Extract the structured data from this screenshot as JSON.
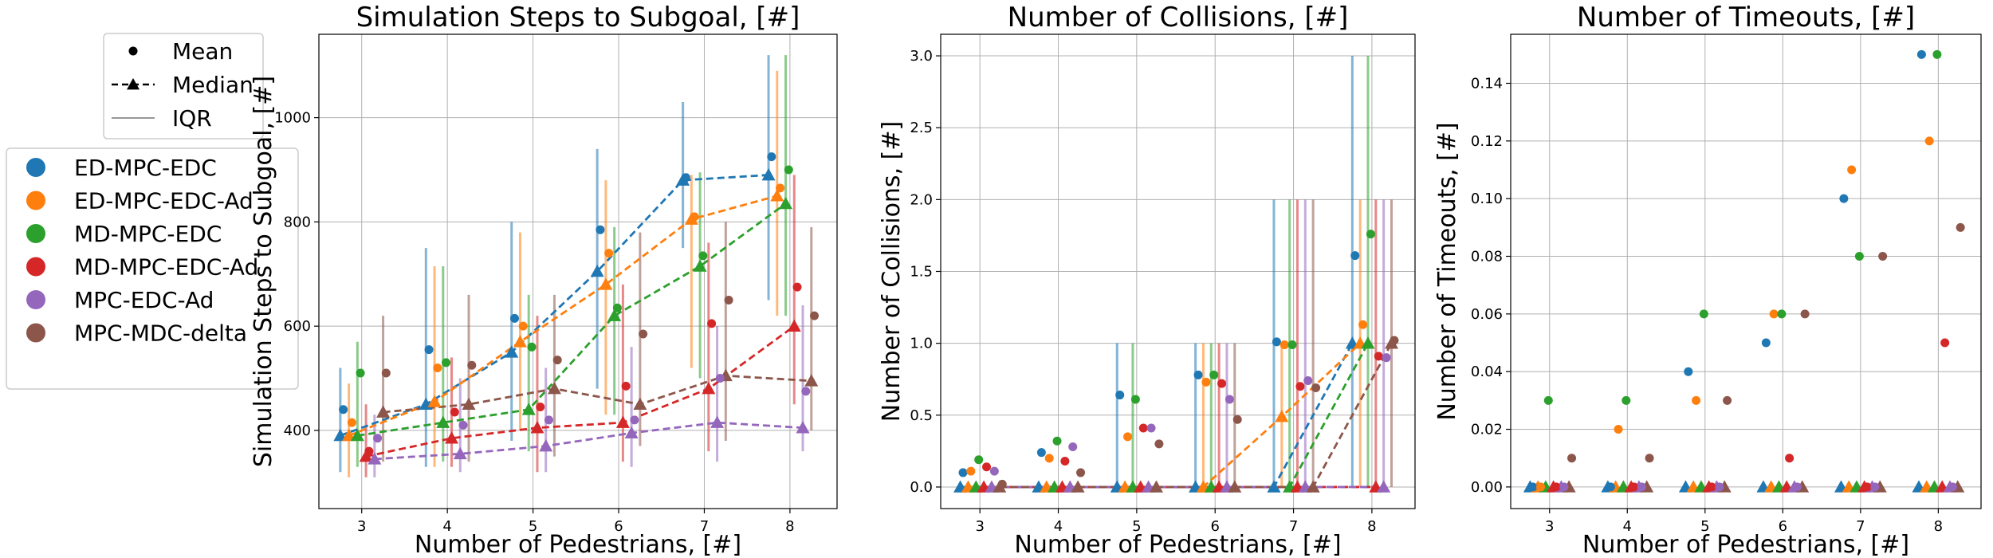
{
  "legend_markers": [
    {
      "label": "Mean",
      "marker": "dot",
      "line": "none"
    },
    {
      "label": "Median",
      "marker": "triangle",
      "line": "dashed"
    },
    {
      "label": "IQR",
      "marker": "none",
      "line": "solid-gray"
    }
  ],
  "legend_methods": [
    {
      "label": "ED-MPC-EDC",
      "color": "#1f77b4"
    },
    {
      "label": "ED-MPC-EDC-Ad",
      "color": "#ff7f0e"
    },
    {
      "label": "MD-MPC-EDC",
      "color": "#2ca02c"
    },
    {
      "label": "MD-MPC-EDC-Ad",
      "color": "#d62728"
    },
    {
      "label": "MPC-EDC-Ad",
      "color": "#9467bd"
    },
    {
      "label": "MPC-MDC-delta",
      "color": "#8c564b"
    }
  ],
  "chart_data": [
    {
      "type": "scatter",
      "title": "Simulation Steps to Subgoal, [#]",
      "xlabel": "Number of Pedestrians, [#]",
      "ylabel": "Simulation Steps to Subgoal, [#]",
      "xlim": [
        2.5,
        8.55
      ],
      "ylim": [
        250,
        1160
      ],
      "xticks": [
        3,
        4,
        5,
        6,
        7,
        8
      ],
      "yticks": [
        400,
        600,
        800,
        1000
      ],
      "ytick_labels": [
        "400",
        "600",
        "800",
        "1000"
      ],
      "grid": true,
      "median_lines": true,
      "x": [
        3,
        4,
        5,
        6,
        7,
        8
      ],
      "series": [
        {
          "name": "ED-MPC-EDC",
          "mean": [
            440,
            555,
            615,
            785,
            885,
            925
          ],
          "median": [
            390,
            450,
            550,
            705,
            880,
            890
          ],
          "iqr": [
            [
              320,
              520
            ],
            [
              330,
              750
            ],
            [
              380,
              800
            ],
            [
              480,
              940
            ],
            [
              750,
              1030
            ],
            [
              650,
              1120
            ]
          ]
        },
        {
          "name": "ED-MPC-EDC-Ad",
          "mean": [
            415,
            520,
            600,
            740,
            810,
            865
          ],
          "median": [
            390,
            455,
            570,
            680,
            805,
            850
          ],
          "iqr": [
            [
              310,
              490
            ],
            [
              330,
              715
            ],
            [
              400,
              780
            ],
            [
              430,
              880
            ],
            [
              520,
              890
            ],
            [
              620,
              1090
            ]
          ]
        },
        {
          "name": "MD-MPC-EDC",
          "mean": [
            510,
            530,
            560,
            635,
            735,
            900
          ],
          "median": [
            390,
            415,
            440,
            620,
            715,
            835
          ],
          "iqr": [
            [
              330,
              570
            ],
            [
              340,
              715
            ],
            [
              360,
              660
            ],
            [
              430,
              790
            ],
            [
              500,
              895
            ],
            [
              620,
              1120
            ]
          ]
        },
        {
          "name": "MD-MPC-EDC-Ad",
          "mean": [
            360,
            435,
            445,
            485,
            605,
            675
          ],
          "median": [
            350,
            385,
            405,
            415,
            480,
            600
          ],
          "iqr": [
            [
              310,
              450
            ],
            [
              330,
              540
            ],
            [
              320,
              620
            ],
            [
              340,
              680
            ],
            [
              360,
              760
            ],
            [
              450,
              890
            ]
          ]
        },
        {
          "name": "MPC-EDC-Ad",
          "mean": [
            385,
            410,
            420,
            420,
            500,
            475
          ],
          "median": [
            345,
            355,
            370,
            395,
            415,
            405
          ],
          "iqr": [
            [
              310,
              430
            ],
            [
              320,
              500
            ],
            [
              320,
              520
            ],
            [
              330,
              560
            ],
            [
              340,
              600
            ],
            [
              360,
              640
            ]
          ]
        },
        {
          "name": "MPC-MDC-delta",
          "mean": [
            510,
            525,
            535,
            585,
            650,
            620
          ],
          "median": [
            435,
            450,
            480,
            450,
            505,
            495
          ],
          "iqr": [
            [
              340,
              620
            ],
            [
              340,
              660
            ],
            [
              350,
              660
            ],
            [
              370,
              780
            ],
            [
              380,
              800
            ],
            [
              400,
              790
            ]
          ]
        }
      ]
    },
    {
      "type": "scatter",
      "title": "Number of Collisions, [#]",
      "xlabel": "Number of Pedestrians, [#]",
      "ylabel": "Number of Collisions, [#]",
      "xlim": [
        2.5,
        8.55
      ],
      "ylim": [
        -0.15,
        3.15
      ],
      "xticks": [
        3,
        4,
        5,
        6,
        7,
        8
      ],
      "yticks": [
        0,
        0.5,
        1,
        1.5,
        2,
        2.5,
        3
      ],
      "ytick_labels": [
        "0.0",
        "0.5",
        "1.0",
        "1.5",
        "2.0",
        "2.5",
        "3.0"
      ],
      "grid": true,
      "median_lines": true,
      "x": [
        3,
        4,
        5,
        6,
        7,
        8
      ],
      "series": [
        {
          "name": "ED-MPC-EDC",
          "mean": [
            0.1,
            0.24,
            0.64,
            0.78,
            1.01,
            1.61
          ],
          "median": [
            0,
            0,
            0,
            0,
            0,
            1
          ],
          "iqr": [
            [
              0,
              0
            ],
            [
              0,
              0
            ],
            [
              0,
              1
            ],
            [
              0,
              1
            ],
            [
              0,
              2
            ],
            [
              0,
              3
            ]
          ]
        },
        {
          "name": "ED-MPC-EDC-Ad",
          "mean": [
            0.11,
            0.2,
            0.35,
            0.73,
            0.99,
            1.13
          ],
          "median": [
            0,
            0,
            0,
            0,
            0.49,
            1
          ],
          "iqr": [
            [
              0,
              0
            ],
            [
              0,
              0
            ],
            [
              0,
              0
            ],
            [
              0,
              1
            ],
            [
              0,
              1
            ],
            [
              0,
              2
            ]
          ]
        },
        {
          "name": "MD-MPC-EDC",
          "mean": [
            0.19,
            0.32,
            0.61,
            0.78,
            0.99,
            1.76
          ],
          "median": [
            0,
            0,
            0,
            0,
            0,
            1
          ],
          "iqr": [
            [
              0,
              0
            ],
            [
              0,
              0
            ],
            [
              0,
              1
            ],
            [
              0,
              1
            ],
            [
              0,
              2
            ],
            [
              0,
              3
            ]
          ]
        },
        {
          "name": "MD-MPC-EDC-Ad",
          "mean": [
            0.14,
            0.18,
            0.41,
            0.72,
            0.7,
            0.91
          ],
          "median": [
            0,
            0,
            0,
            0,
            0,
            0
          ],
          "iqr": [
            [
              0,
              0
            ],
            [
              0,
              0
            ],
            [
              0,
              0
            ],
            [
              0,
              1
            ],
            [
              0,
              2
            ],
            [
              0,
              2
            ]
          ]
        },
        {
          "name": "MPC-EDC-Ad",
          "mean": [
            0.11,
            0.28,
            0.41,
            0.61,
            0.74,
            0.9
          ],
          "median": [
            0,
            0,
            0,
            0,
            0,
            0
          ],
          "iqr": [
            [
              0,
              0
            ],
            [
              0,
              0
            ],
            [
              0,
              0
            ],
            [
              0,
              1
            ],
            [
              0,
              2
            ],
            [
              0,
              2
            ]
          ]
        },
        {
          "name": "MPC-MDC-delta",
          "mean": [
            0.02,
            0.1,
            0.3,
            0.47,
            0.69,
            1.02
          ],
          "median": [
            0,
            0,
            0,
            0,
            0,
            1
          ],
          "iqr": [
            [
              0,
              0
            ],
            [
              0,
              0
            ],
            [
              0,
              0
            ],
            [
              0,
              1
            ],
            [
              0,
              2
            ],
            [
              0,
              2
            ]
          ]
        }
      ]
    },
    {
      "type": "scatter",
      "title": "Number of Timeouts, [#]",
      "xlabel": "Number of Pedestrians, [#]",
      "ylabel": "Number of Timeouts, [#]",
      "xlim": [
        2.5,
        8.55
      ],
      "ylim": [
        -0.0075,
        0.157
      ],
      "xticks": [
        3,
        4,
        5,
        6,
        7,
        8
      ],
      "yticks": [
        0,
        0.02,
        0.04,
        0.06,
        0.08,
        0.1,
        0.12,
        0.14
      ],
      "ytick_labels": [
        "0.00",
        "0.02",
        "0.04",
        "0.06",
        "0.08",
        "0.10",
        "0.12",
        "0.14"
      ],
      "grid": true,
      "median_lines": false,
      "x": [
        3,
        4,
        5,
        6,
        7,
        8
      ],
      "series": [
        {
          "name": "ED-MPC-EDC",
          "mean": [
            0,
            0,
            0.04,
            0.05,
            0.1,
            0.15
          ],
          "median": [
            0,
            0,
            0,
            0,
            0,
            0
          ],
          "iqr": [
            [
              0,
              0
            ],
            [
              0,
              0
            ],
            [
              0,
              0
            ],
            [
              0,
              0
            ],
            [
              0,
              0
            ],
            [
              0,
              0
            ]
          ]
        },
        {
          "name": "ED-MPC-EDC-Ad",
          "mean": [
            0,
            0.02,
            0.03,
            0.06,
            0.11,
            0.12
          ],
          "median": [
            0,
            0,
            0,
            0,
            0,
            0
          ],
          "iqr": [
            [
              0,
              0
            ],
            [
              0,
              0
            ],
            [
              0,
              0
            ],
            [
              0,
              0
            ],
            [
              0,
              0
            ],
            [
              0,
              0
            ]
          ]
        },
        {
          "name": "MD-MPC-EDC",
          "mean": [
            0.03,
            0.03,
            0.06,
            0.06,
            0.08,
            0.15
          ],
          "median": [
            0,
            0,
            0,
            0,
            0,
            0
          ],
          "iqr": [
            [
              0,
              0
            ],
            [
              0,
              0
            ],
            [
              0,
              0
            ],
            [
              0,
              0
            ],
            [
              0,
              0
            ],
            [
              0,
              0
            ]
          ]
        },
        {
          "name": "MD-MPC-EDC-Ad",
          "mean": [
            0,
            0,
            0,
            0.01,
            0,
            0.05
          ],
          "median": [
            0,
            0,
            0,
            0,
            0,
            0
          ],
          "iqr": [
            [
              0,
              0
            ],
            [
              0,
              0
            ],
            [
              0,
              0
            ],
            [
              0,
              0
            ],
            [
              0,
              0
            ],
            [
              0,
              0
            ]
          ]
        },
        {
          "name": "MPC-EDC-Ad",
          "mean": [
            0,
            0,
            0,
            0,
            0,
            0
          ],
          "median": [
            0,
            0,
            0,
            0,
            0,
            0
          ],
          "iqr": [
            [
              0,
              0
            ],
            [
              0,
              0
            ],
            [
              0,
              0
            ],
            [
              0,
              0
            ],
            [
              0,
              0
            ],
            [
              0,
              0
            ]
          ]
        },
        {
          "name": "MPC-MDC-delta",
          "mean": [
            0.01,
            0.01,
            0.03,
            0.06,
            0.08,
            0.09
          ],
          "median": [
            0,
            0,
            0,
            0,
            0,
            0
          ],
          "iqr": [
            [
              0,
              0
            ],
            [
              0,
              0
            ],
            [
              0,
              0
            ],
            [
              0,
              0
            ],
            [
              0,
              0
            ],
            [
              0,
              0
            ]
          ]
        }
      ]
    }
  ]
}
